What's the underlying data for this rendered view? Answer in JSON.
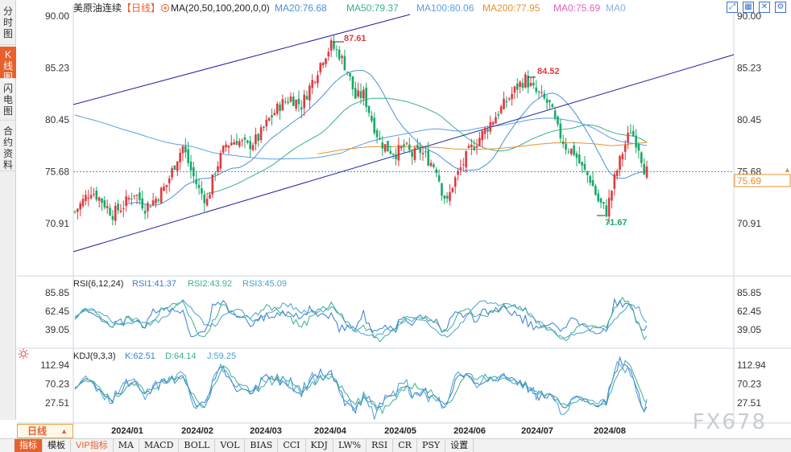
{
  "side_tabs": [
    {
      "label": "分时图",
      "chars": [
        "分",
        "时",
        "图"
      ],
      "active": false
    },
    {
      "label": "K线图",
      "chars": [
        "K",
        "线",
        "图"
      ],
      "active": true
    },
    {
      "label": "闪电图",
      "chars": [
        "闪",
        "电",
        "图"
      ],
      "active": false
    },
    {
      "label": "合约资料",
      "chars": [
        "合",
        "约",
        "资",
        "料"
      ],
      "active": false
    }
  ],
  "header": {
    "symbol": "美原油连续",
    "period_tag": "【日线】",
    "plus_icon": "plus-circle-icon",
    "ma_params": "MA(20,50,100,200,0,0)",
    "ma_values": [
      {
        "label": "MA20:76.68",
        "color": "#4a90d9"
      },
      {
        "label": "MA50:79.37",
        "color": "#3ab08a"
      },
      {
        "label": "MA100:80.06",
        "color": "#5aa0e0"
      },
      {
        "label": "MA200:77.95",
        "color": "#e8912c"
      },
      {
        "label": "MA0:75.69",
        "color": "#e060c0"
      },
      {
        "label": "MA0",
        "color": "#8ab0e0"
      }
    ]
  },
  "toolbar_icons": [
    "expand-icon",
    "grid-icon",
    "close-icon",
    "settings-icon"
  ],
  "main_chart": {
    "y_ticks_left": [
      "90.00",
      "85.23",
      "80.45",
      "75.68",
      "70.91"
    ],
    "y_ticks_right": [
      "90.00",
      "85.23",
      "80.45",
      "75.68",
      "70.91"
    ],
    "current_price": "75.69",
    "annotations": {
      "high1": "87.61",
      "high2": "84.52",
      "low1": "71.67"
    }
  },
  "rsi_panel": {
    "title": "RSI(6,12,24)",
    "values": [
      {
        "label": "RSI1:41.37",
        "color": "#3a7bd5"
      },
      {
        "label": "RSI2:43.92",
        "color": "#3ab08a"
      },
      {
        "label": "RSI3:45.09",
        "color": "#4aa0d0"
      }
    ],
    "y_ticks": [
      "85.85",
      "62.45",
      "39.05"
    ]
  },
  "kdj_panel": {
    "title": "KDJ(9,3,3)",
    "values": [
      {
        "label": "K:62.51",
        "color": "#3a7bd5"
      },
      {
        "label": "D:64.14",
        "color": "#3ab08a"
      },
      {
        "label": "J:59.25",
        "color": "#4aa0d0"
      }
    ],
    "y_ticks": [
      "112.94",
      "70.23",
      "27.51"
    ]
  },
  "x_axis": [
    "2024/01",
    "2024/02",
    "2024/03",
    "2024/04",
    "2024/05",
    "2024/06",
    "2024/07",
    "2024/08"
  ],
  "period_selector": {
    "label": "日线"
  },
  "bottom_tabs": [
    {
      "label": "指标",
      "active": true,
      "kind": "cn"
    },
    {
      "label": "模板",
      "active": false,
      "kind": "cn"
    },
    {
      "label": "VIP指标",
      "active": false,
      "kind": "vip"
    },
    {
      "label": "MA",
      "active": false,
      "kind": ""
    },
    {
      "label": "MACD",
      "active": false,
      "kind": ""
    },
    {
      "label": "BOLL",
      "active": false,
      "kind": ""
    },
    {
      "label": "VOL",
      "active": false,
      "kind": ""
    },
    {
      "label": "BIAS",
      "active": false,
      "kind": ""
    },
    {
      "label": "CCI",
      "active": false,
      "kind": ""
    },
    {
      "label": "KDJ",
      "active": false,
      "kind": ""
    },
    {
      "label": "LW%",
      "active": false,
      "kind": ""
    },
    {
      "label": "RSI",
      "active": false,
      "kind": ""
    },
    {
      "label": "CR",
      "active": false,
      "kind": ""
    },
    {
      "label": "PSY",
      "active": false,
      "kind": ""
    },
    {
      "label": "设置",
      "active": false,
      "kind": "cn"
    }
  ],
  "watermark": "FX678",
  "colors": {
    "up": "#e0383e",
    "down": "#17a868",
    "channel": "#1f1fa0",
    "accent": "#e8612c"
  }
}
